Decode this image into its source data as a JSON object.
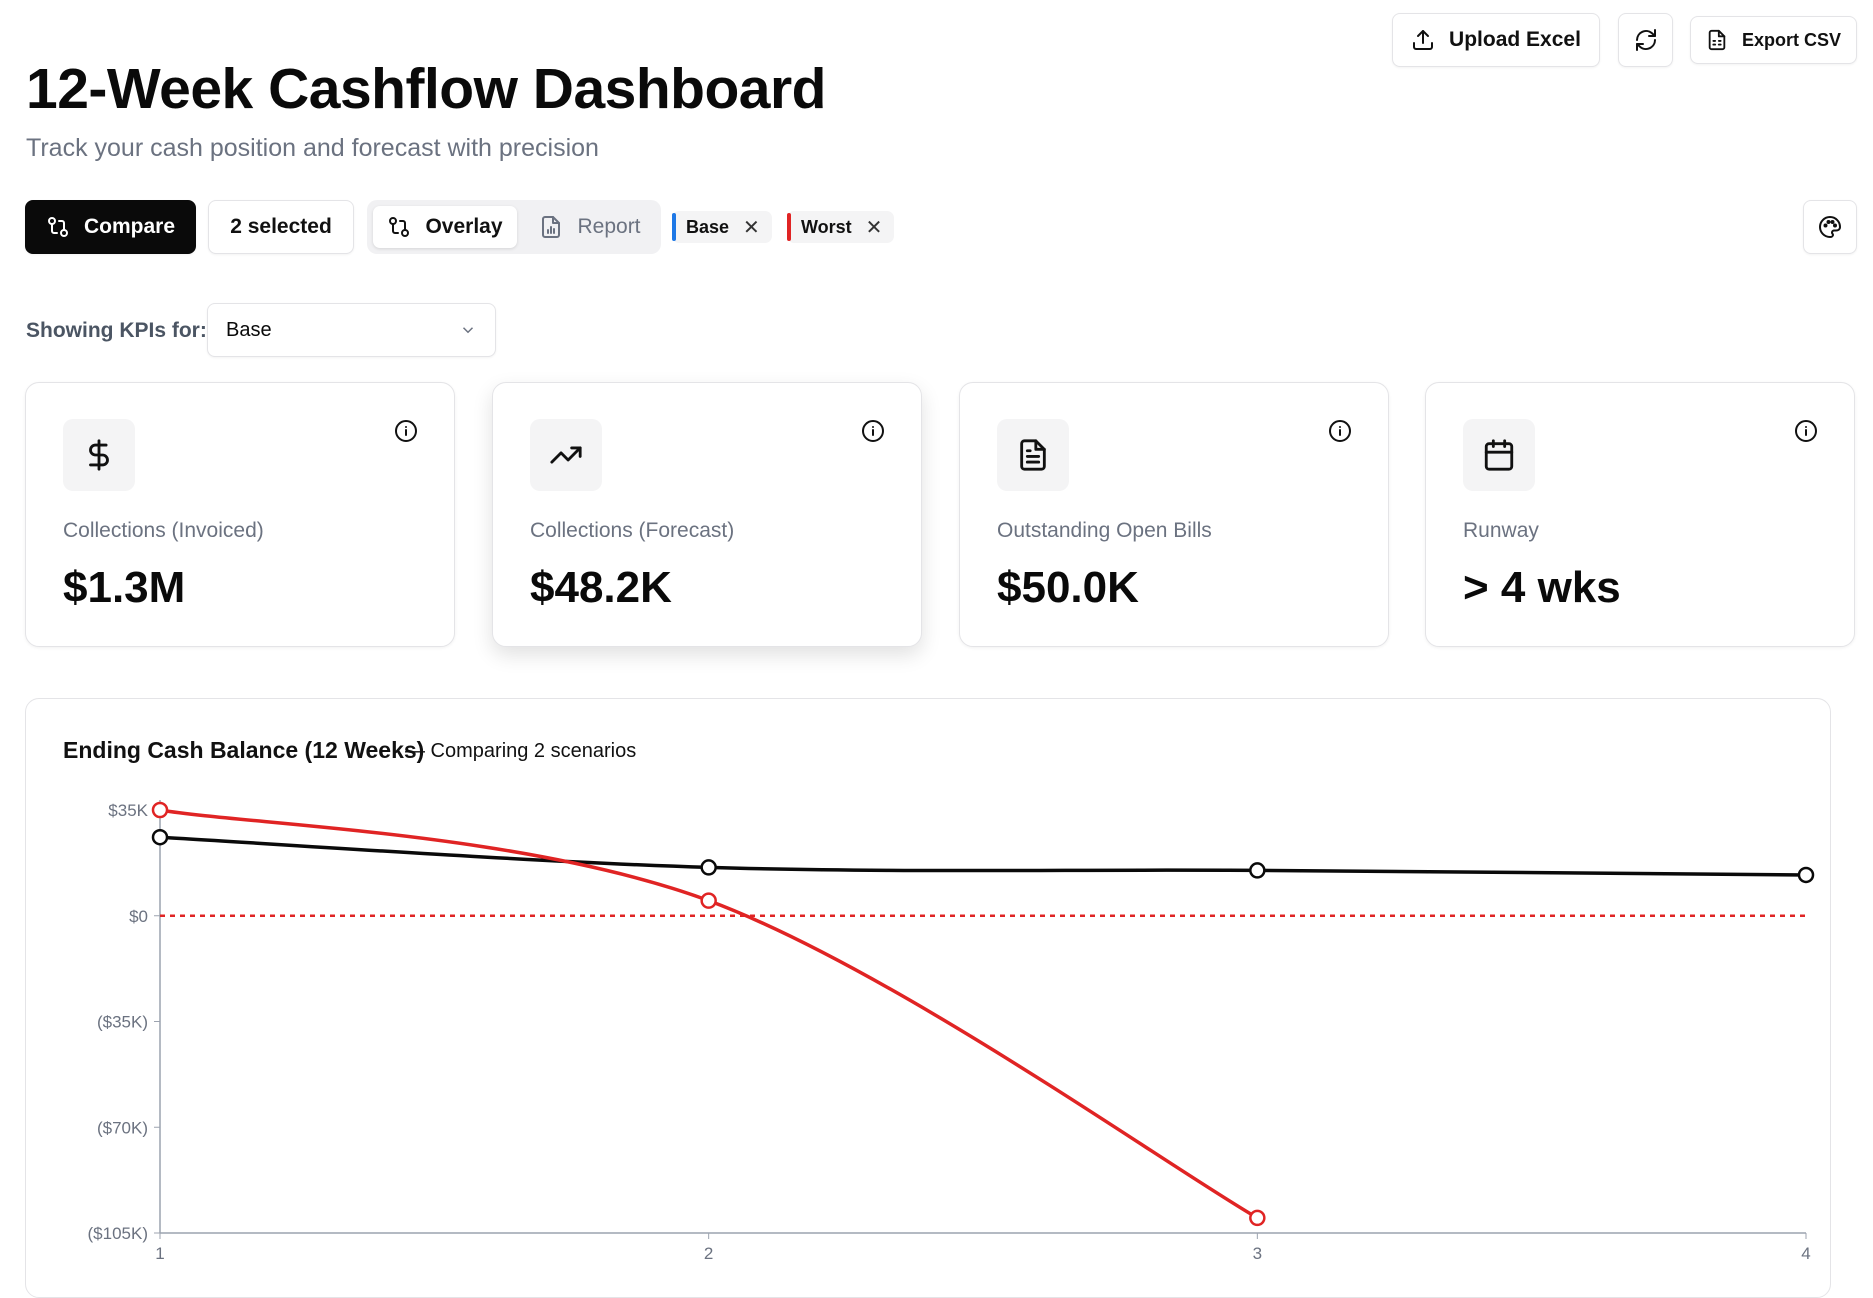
{
  "header": {
    "title": "12-Week Cashflow Dashboard",
    "subtitle": "Track your cash position and forecast with precision"
  },
  "actions": {
    "upload_label": "Upload Excel",
    "export_label": "Export CSV",
    "upload_icon": "upload-icon",
    "refresh_icon": "refresh-icon",
    "export_icon": "file-spreadsheet-icon"
  },
  "toolbar": {
    "compare_label": "Compare",
    "selected_label": "2 selected",
    "overlay_label": "Overlay",
    "report_label": "Report",
    "chips": [
      {
        "label": "Base",
        "color": "#1e78e6"
      },
      {
        "label": "Worst",
        "color": "#e02424"
      }
    ],
    "palette_icon": "palette-icon"
  },
  "kpi_selector": {
    "label": "Showing KPIs for:",
    "selected": "Base"
  },
  "kpis": [
    {
      "label": "Collections (Invoiced)",
      "value": "$1.3M",
      "icon": "dollar-icon"
    },
    {
      "label": "Collections (Forecast)",
      "value": "$48.2K",
      "icon": "trending-up-icon"
    },
    {
      "label": "Outstanding Open Bills",
      "value": "$50.0K",
      "icon": "file-text-icon"
    },
    {
      "label": "Runway",
      "value": "> 4 wks",
      "icon": "calendar-icon"
    }
  ],
  "chart": {
    "title": "Ending Cash Balance (12 Weeks)",
    "subtitle": "— Comparing 2 scenarios"
  },
  "chart_data": {
    "type": "line",
    "title": "Ending Cash Balance (12 Weeks)",
    "x": [
      1,
      2,
      3,
      4
    ],
    "y_ticks": [
      "$35K",
      "$0",
      "($35K)",
      "($70K)",
      "($105K)"
    ],
    "y_tick_values": [
      35000,
      0,
      -35000,
      -70000,
      -105000
    ],
    "ylim": [
      -105000,
      35000
    ],
    "series": [
      {
        "name": "Base",
        "color": "#0a0a0a",
        "values": [
          26000,
          16000,
          15000,
          13500
        ]
      },
      {
        "name": "Worst",
        "color": "#e02424",
        "values": [
          35000,
          5000,
          -100000,
          null
        ]
      }
    ],
    "reference_line": {
      "y": 0,
      "style": "dashed",
      "color": "#e02424"
    }
  }
}
